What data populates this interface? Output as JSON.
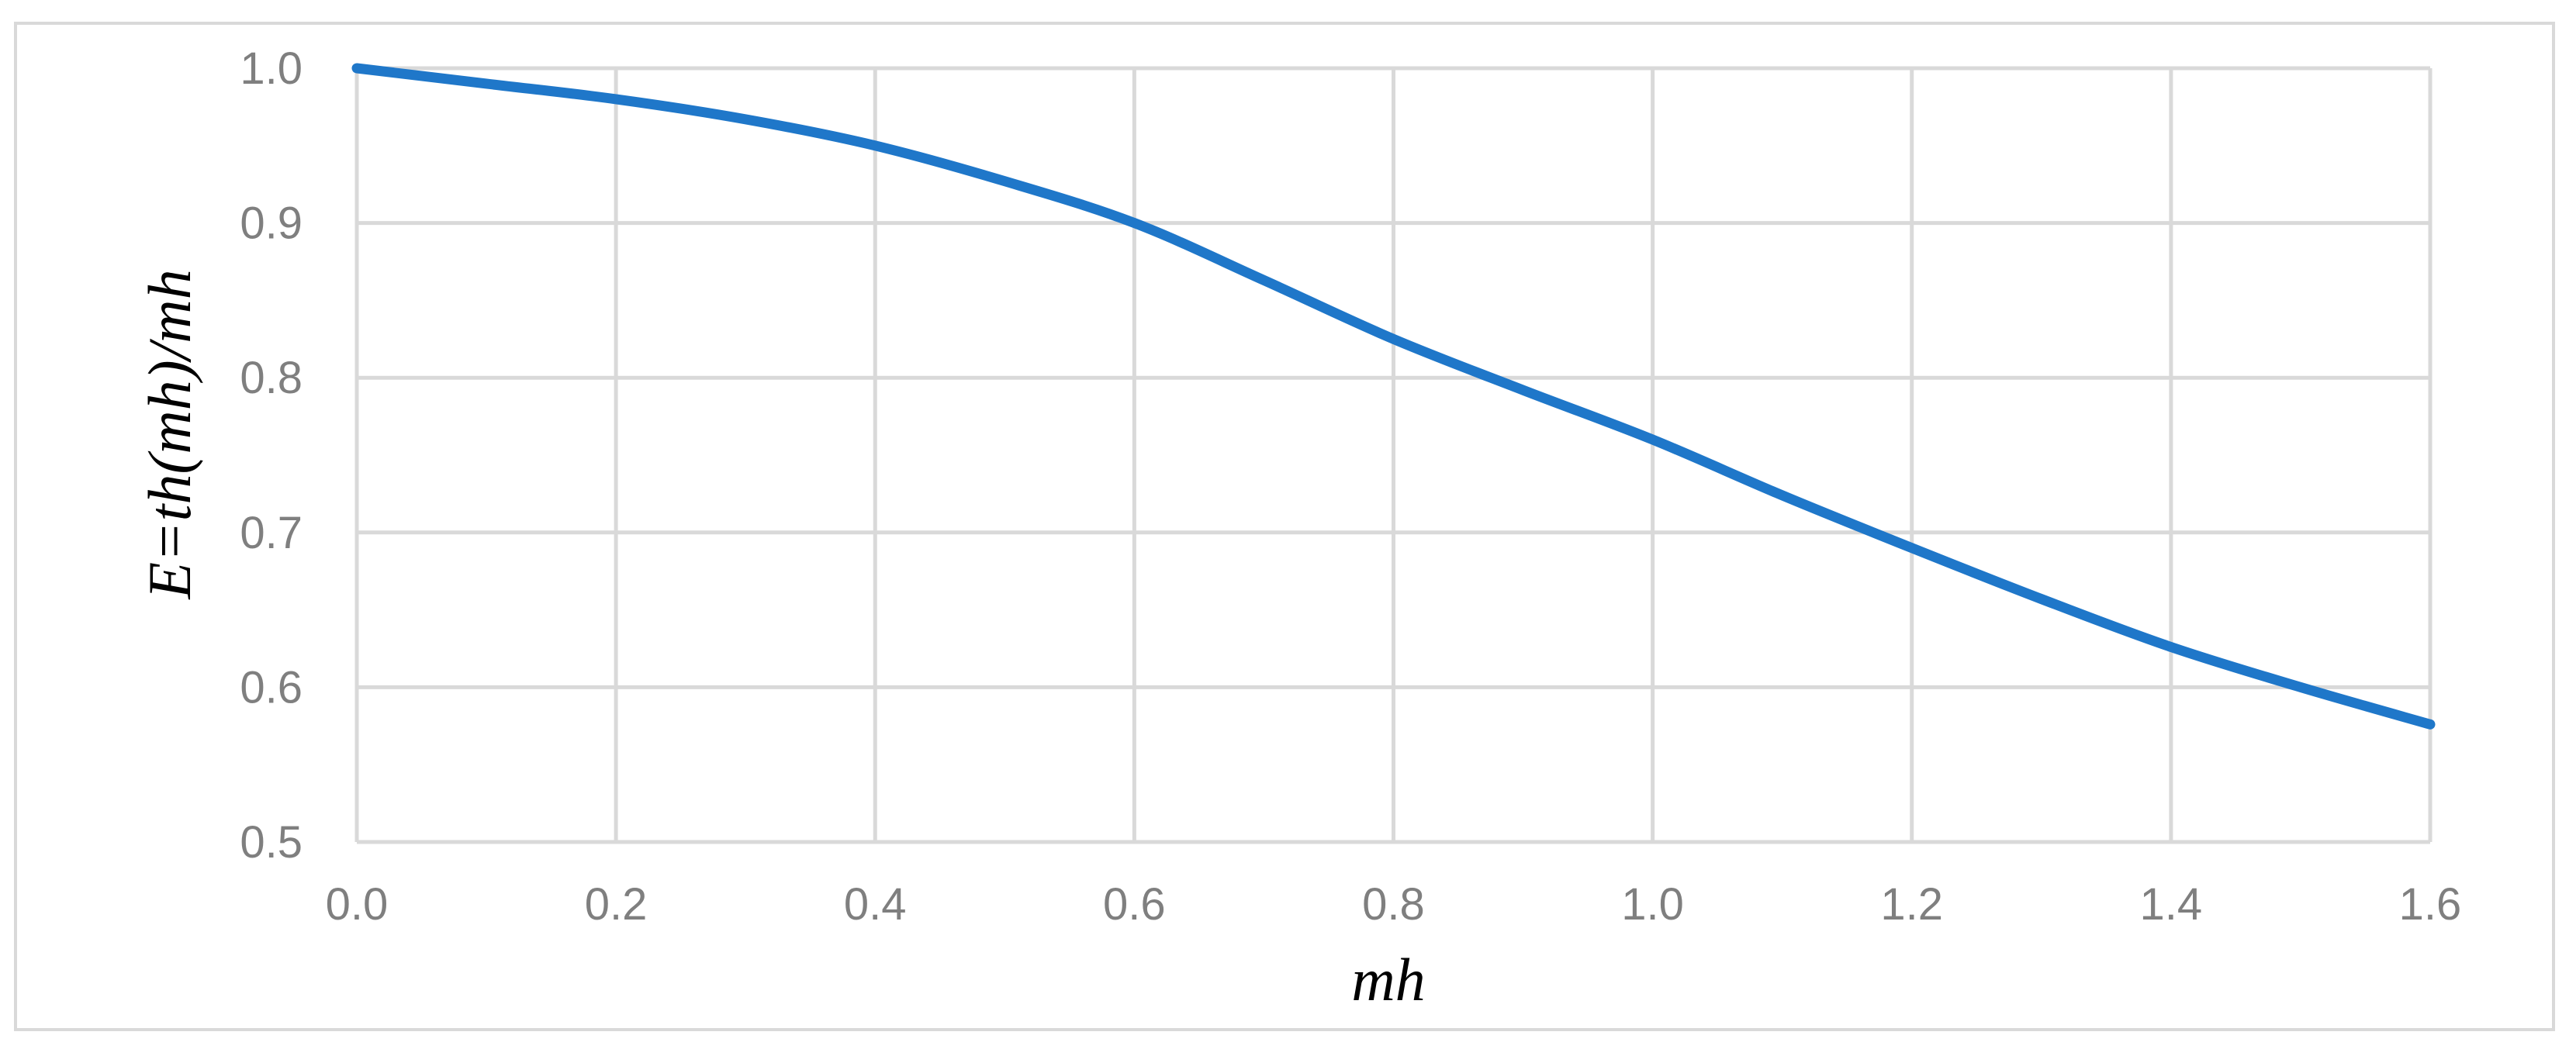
{
  "chart_data": {
    "type": "line",
    "title": "",
    "xlabel": "mh",
    "ylabel": "E=th(mh)/mh",
    "xlim": [
      0.0,
      1.6
    ],
    "ylim": [
      0.5,
      1.0
    ],
    "x_ticks": [
      "0.0",
      "0.2",
      "0.4",
      "0.6",
      "0.8",
      "1.0",
      "1.2",
      "1.4",
      "1.6"
    ],
    "y_ticks": [
      "0.5",
      "0.6",
      "0.7",
      "0.8",
      "0.9",
      "1.0"
    ],
    "grid": true,
    "legend": "none",
    "series": [
      {
        "color": "#1f77c9",
        "x": [
          0.0,
          0.1,
          0.2,
          0.3,
          0.4,
          0.5,
          0.6,
          0.7,
          0.8,
          0.9,
          1.0,
          1.1,
          1.2,
          1.3,
          1.4,
          1.5,
          1.6
        ],
        "y": [
          1.0,
          0.99,
          0.98,
          0.967,
          0.95,
          0.927,
          0.9,
          0.863,
          0.825,
          0.792,
          0.76,
          0.724,
          0.69,
          0.657,
          0.626,
          0.6,
          0.576
        ]
      }
    ]
  },
  "colors": {
    "grid": "#d9d9d9",
    "tick_text": "#7f7f7f",
    "frame": "#d9d9d9"
  }
}
